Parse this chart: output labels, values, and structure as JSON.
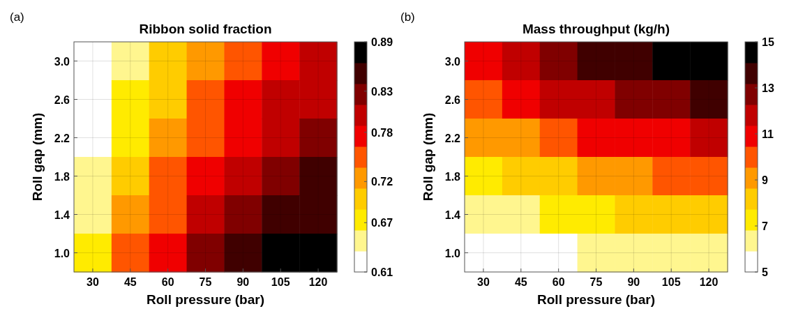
{
  "chart_data": [
    {
      "type": "heatmap",
      "title": "Ribbon solid fraction",
      "xlabel": "Roll pressure (bar)",
      "ylabel": "Roll gap (mm)",
      "annotations": [
        "(a)"
      ],
      "categories": [
        "30",
        "45",
        "60",
        "75",
        "90",
        "105",
        "120"
      ],
      "y_categories": [
        "3.0",
        "2.6",
        "2.2",
        "1.8",
        "1.4",
        "1.0"
      ],
      "clim": [
        0.61,
        0.89
      ],
      "cticks": [
        0.61,
        0.67,
        0.72,
        0.78,
        0.83,
        0.89
      ],
      "grid": true,
      "cells": [
        [
          0.61,
          0.66,
          0.7,
          0.73,
          0.76,
          0.78,
          0.8
        ],
        [
          0.62,
          0.67,
          0.71,
          0.74,
          0.77,
          0.79,
          0.81
        ],
        [
          0.63,
          0.68,
          0.72,
          0.76,
          0.78,
          0.8,
          0.82
        ],
        [
          0.64,
          0.7,
          0.74,
          0.77,
          0.8,
          0.82,
          0.84
        ],
        [
          0.66,
          0.72,
          0.76,
          0.79,
          0.82,
          0.84,
          0.86
        ],
        [
          0.68,
          0.74,
          0.78,
          0.82,
          0.84,
          0.87,
          0.89
        ]
      ]
    },
    {
      "type": "heatmap",
      "title": "Mass throughput (kg/h)",
      "xlabel": "Roll pressure (bar)",
      "ylabel": "Roll gap (mm)",
      "annotations": [
        "(b)"
      ],
      "categories": [
        "30",
        "45",
        "60",
        "75",
        "90",
        "105",
        "120"
      ],
      "y_categories": [
        "3.0",
        "2.6",
        "2.2",
        "1.8",
        "1.4",
        "1.0"
      ],
      "clim": [
        5,
        15
      ],
      "cticks": [
        5,
        7,
        9,
        11,
        13,
        15
      ],
      "grid": true,
      "cells": [
        [
          11.3,
          12.2,
          12.9,
          13.5,
          14.0,
          14.5,
          15.0
        ],
        [
          10.1,
          10.8,
          11.4,
          12.0,
          12.5,
          12.9,
          13.4
        ],
        [
          8.8,
          9.5,
          10.0,
          10.5,
          10.9,
          11.3,
          11.7
        ],
        [
          7.6,
          8.1,
          8.6,
          9.0,
          9.4,
          9.7,
          10.0
        ],
        [
          6.3,
          6.8,
          7.2,
          7.5,
          7.8,
          8.1,
          8.4
        ],
        [
          5.1,
          5.4,
          5.7,
          6.0,
          6.2,
          6.5,
          6.7
        ]
      ]
    }
  ]
}
